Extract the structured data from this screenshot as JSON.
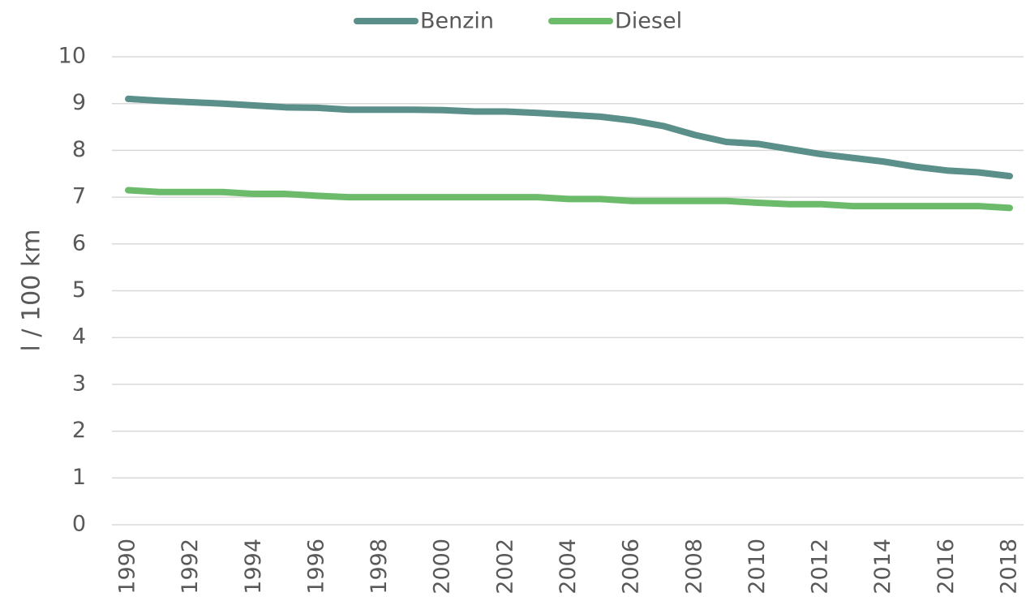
{
  "chart_data": {
    "type": "line",
    "y_label": "l / 100 km",
    "x": [
      1990,
      1991,
      1992,
      1993,
      1994,
      1995,
      1996,
      1997,
      1998,
      1999,
      2000,
      2001,
      2002,
      2003,
      2004,
      2005,
      2006,
      2007,
      2008,
      2009,
      2010,
      2011,
      2012,
      2013,
      2014,
      2015,
      2016,
      2017,
      2018
    ],
    "series": [
      {
        "name": "Benzin",
        "color": "#5b8f8a",
        "values": [
          9.1,
          9.06,
          9.03,
          9.0,
          8.96,
          8.92,
          8.91,
          8.87,
          8.87,
          8.87,
          8.86,
          8.83,
          8.83,
          8.8,
          8.76,
          8.72,
          8.64,
          8.52,
          8.33,
          8.18,
          8.14,
          8.03,
          7.92,
          7.84,
          7.76,
          7.65,
          7.57,
          7.53,
          7.45
        ]
      },
      {
        "name": "Diesel",
        "color": "#6bbb6b",
        "values": [
          7.15,
          7.11,
          7.11,
          7.11,
          7.07,
          7.07,
          7.03,
          7.0,
          7.0,
          7.0,
          7.0,
          7.0,
          7.0,
          7.0,
          6.96,
          6.96,
          6.92,
          6.92,
          6.92,
          6.92,
          6.88,
          6.85,
          6.85,
          6.81,
          6.81,
          6.81,
          6.81,
          6.81,
          6.77
        ]
      }
    ],
    "xlim": [
      1990,
      2018
    ],
    "xticks": [
      1990,
      1992,
      1994,
      1996,
      1998,
      2000,
      2002,
      2004,
      2006,
      2008,
      2010,
      2012,
      2014,
      2016,
      2018
    ],
    "ylim": [
      0,
      10
    ],
    "yticks": [
      0,
      1,
      2,
      3,
      4,
      5,
      6,
      7,
      8,
      9,
      10
    ],
    "grid": true,
    "legend": "top"
  }
}
